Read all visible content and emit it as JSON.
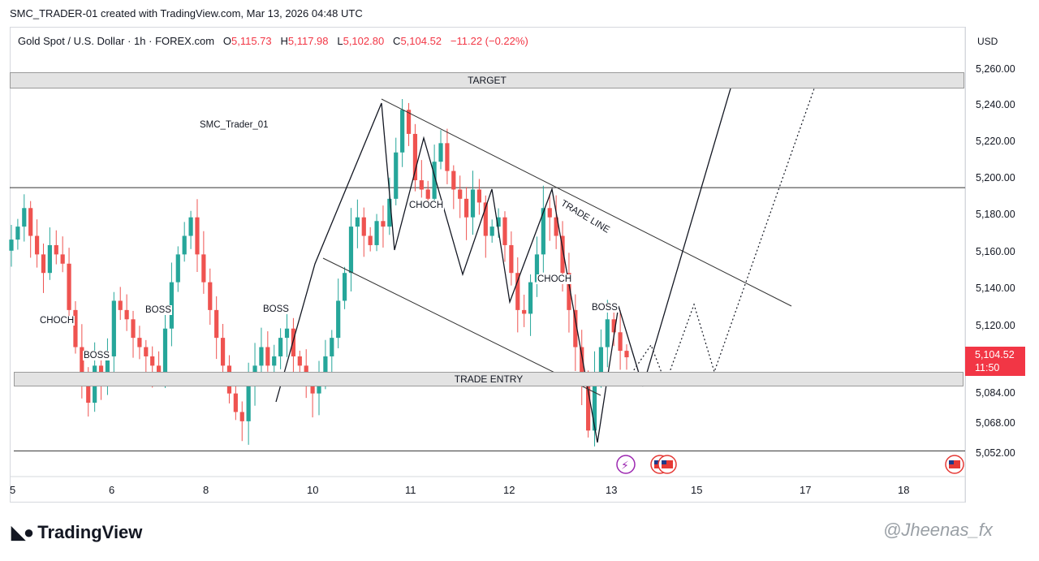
{
  "header": "SMC_TRADER-01 created with TradingView.com, Mar 13, 2026 04:48 UTC",
  "symbol": {
    "name": "Gold Spot / U.S. Dollar · 1h · FOREX.com",
    "open_label": "O",
    "open": "5,115.73",
    "high_label": "H",
    "high": "5,117.98",
    "low_label": "L",
    "low": "5,102.80",
    "close_label": "C",
    "close": "5,104.52",
    "change": "−11.22 (−0.22%)"
  },
  "axis_unit": "USD",
  "last_price": {
    "price": "5,104.52",
    "countdown": "11:50"
  },
  "author": "SMC_Trader_01",
  "zones": {
    "target": "TARGET",
    "entry": "TRADE ENTRY"
  },
  "trade_line_label": "TRADE LINE",
  "labels": {
    "choch_1": "CHOCH",
    "boss_1": "BOSS",
    "boss_2": "BOSS",
    "boss_3": "BOSS",
    "choch_2": "CHOCH",
    "choch_3": "CHOCH",
    "boss_4": "BOSS"
  },
  "brand": "TradingView",
  "watermark": "@Jheenas_fx",
  "colors": {
    "bull": "#26a69a",
    "bear": "#ef5350",
    "price_tag": "#f23645",
    "zone": "#e3e3e3"
  },
  "icons": [
    "lightning-event-icon",
    "us-flag-event-icon",
    "us-flag-event-icon"
  ],
  "chart_data": {
    "type": "candlestick",
    "title": "Gold Spot / U.S. Dollar · 1h · FOREX.com",
    "ylabel": "USD",
    "ylim": [
      5040,
      5272
    ],
    "y_ticks": [
      "5,260.00",
      "5,240.00",
      "5,220.00",
      "5,200.00",
      "5,180.00",
      "5,160.00",
      "5,140.00",
      "5,120.00",
      "5,084.00",
      "5,068.00",
      "5,052.00"
    ],
    "x_ticks": [
      "5",
      "6",
      "8",
      "10",
      "11",
      "12",
      "13",
      "15",
      "17",
      "18"
    ],
    "levels": {
      "target_zone": [
        5248,
        5257
      ],
      "entry_zone": [
        5087,
        5094
      ],
      "upper_line": 5196,
      "lower_line": 5054
    },
    "close_path": [
      5168,
      5175,
      5185,
      5170,
      5160,
      5150,
      5165,
      5160,
      5155,
      5130,
      5110,
      5095,
      5080,
      5100,
      5090,
      5105,
      5135,
      5130,
      5125,
      5115,
      5110,
      5105,
      5100,
      5095,
      5120,
      5145,
      5160,
      5170,
      5180,
      5160,
      5145,
      5130,
      5115,
      5100,
      5085,
      5075,
      5070,
      5090,
      5100,
      5110,
      5100,
      5105,
      5115,
      5120,
      5105,
      5100,
      5090,
      5085,
      5095,
      5105,
      5115,
      5135,
      5150,
      5175,
      5180,
      5170,
      5165,
      5178,
      5175,
      5190,
      5215,
      5238,
      5225,
      5200,
      5195,
      5190,
      5210,
      5220,
      5205,
      5195,
      5190,
      5180,
      5195,
      5188,
      5170,
      5175,
      5180,
      5165,
      5150,
      5130,
      5128,
      5145,
      5160,
      5185,
      5180,
      5170,
      5150,
      5130,
      5110,
      5090,
      5065,
      5095,
      5110,
      5125,
      5118,
      5108,
      5104.52
    ]
  }
}
